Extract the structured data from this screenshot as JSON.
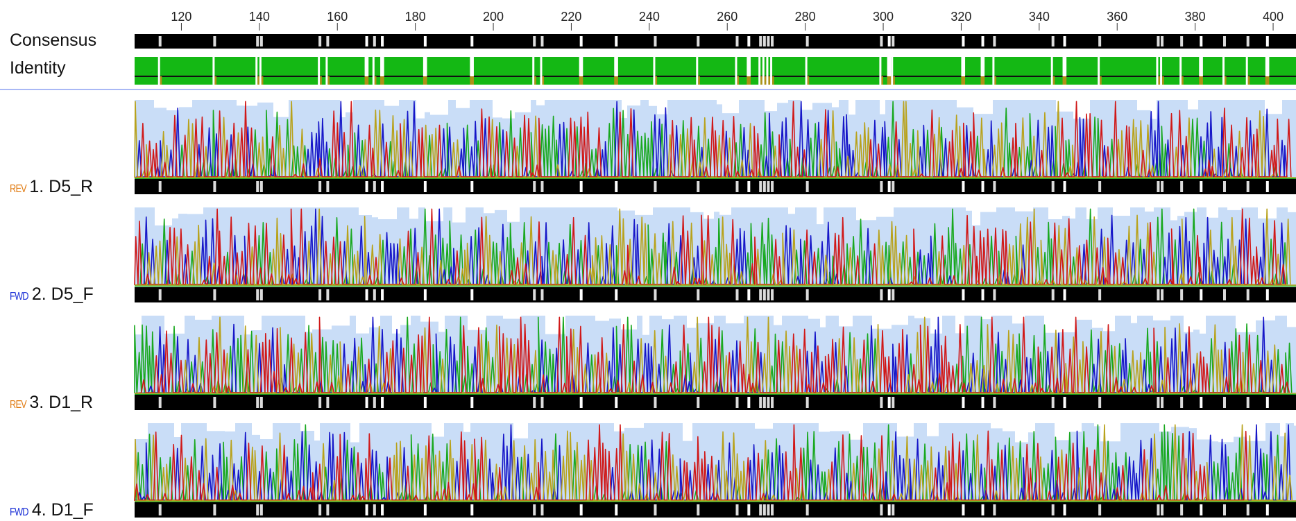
{
  "ruler": {
    "ticks": [
      "120",
      "140",
      "160",
      "180",
      "200",
      "220",
      "240",
      "260",
      "280",
      "300",
      "320",
      "340",
      "360",
      "380",
      "400"
    ]
  },
  "header": {
    "consensus_label": "Consensus",
    "identity_label": "Identity"
  },
  "colors": {
    "base_A": "#19a81f",
    "base_C": "#1616c8",
    "base_G": "#b8a21c",
    "base_T": "#d01818",
    "quality": "#c9ddf7",
    "identity": "#14b814",
    "identity_partial": "#b09018",
    "separator": "#a9b8f5",
    "rev_tag": "#e07a10",
    "fwd_tag": "#1a2fd6"
  },
  "reads": [
    {
      "direction": "REV",
      "name": "1. D5_R"
    },
    {
      "direction": "FWD",
      "name": "2. D5_F"
    },
    {
      "direction": "REV",
      "name": "3. D1_R"
    },
    {
      "direction": "FWD",
      "name": "4. D1_F"
    }
  ]
}
